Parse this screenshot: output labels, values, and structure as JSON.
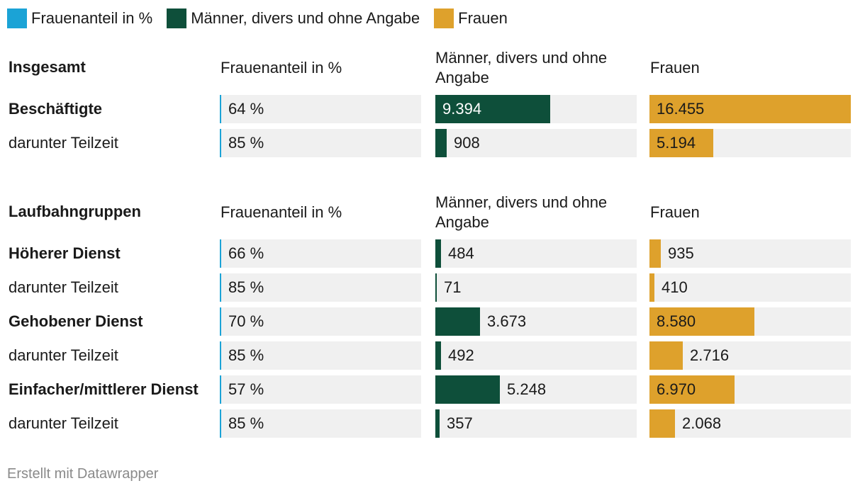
{
  "legend": [
    {
      "label": "Frauenanteil in %",
      "color": "#1ba3d6"
    },
    {
      "label": "Männer, divers und ohne Angabe",
      "color": "#0e4f3a"
    },
    {
      "label": "Frauen",
      "color": "#dea12c"
    }
  ],
  "columns": {
    "pct": "Frauenanteil in %",
    "men": "Männer, divers und ohne Angabe",
    "women": "Frauen"
  },
  "chart_data": {
    "type": "table",
    "colors": {
      "pct": "#1ba3d6",
      "men": "#0e4f3a",
      "women": "#dea12c"
    },
    "max": {
      "men": 16455,
      "women": 16455
    },
    "sections": [
      {
        "title": "Insgesamt",
        "rows": [
          {
            "label": "Beschäftigte",
            "bold": true,
            "pct": "64 %",
            "men": 9394,
            "men_label": "9.394",
            "women": 16455,
            "women_label": "16.455"
          },
          {
            "label": "darunter Teilzeit",
            "bold": false,
            "pct": "85 %",
            "men": 908,
            "men_label": "908",
            "women": 5194,
            "women_label": "5.194"
          }
        ]
      },
      {
        "title": "Laufbahngruppen",
        "rows": [
          {
            "label": "Höherer Dienst",
            "bold": true,
            "pct": "66 %",
            "men": 484,
            "men_label": "484",
            "women": 935,
            "women_label": "935"
          },
          {
            "label": "darunter Teilzeit",
            "bold": false,
            "pct": "85 %",
            "men": 71,
            "men_label": "71",
            "women": 410,
            "women_label": "410"
          },
          {
            "label": "Gehobener Dienst",
            "bold": true,
            "pct": "70 %",
            "men": 3673,
            "men_label": "3.673",
            "women": 8580,
            "women_label": "8.580"
          },
          {
            "label": "darunter Teilzeit",
            "bold": false,
            "pct": "85 %",
            "men": 492,
            "men_label": "492",
            "women": 2716,
            "women_label": "2.716"
          },
          {
            "label": "Einfacher/mittlerer Dienst",
            "bold": true,
            "pct": "57 %",
            "men": 5248,
            "men_label": "5.248",
            "women": 6970,
            "women_label": "6.970"
          },
          {
            "label": "darunter Teilzeit",
            "bold": false,
            "pct": "85 %",
            "men": 357,
            "men_label": "357",
            "women": 2068,
            "women_label": "2.068"
          }
        ]
      }
    ]
  },
  "footer": "Erstellt mit Datawrapper"
}
